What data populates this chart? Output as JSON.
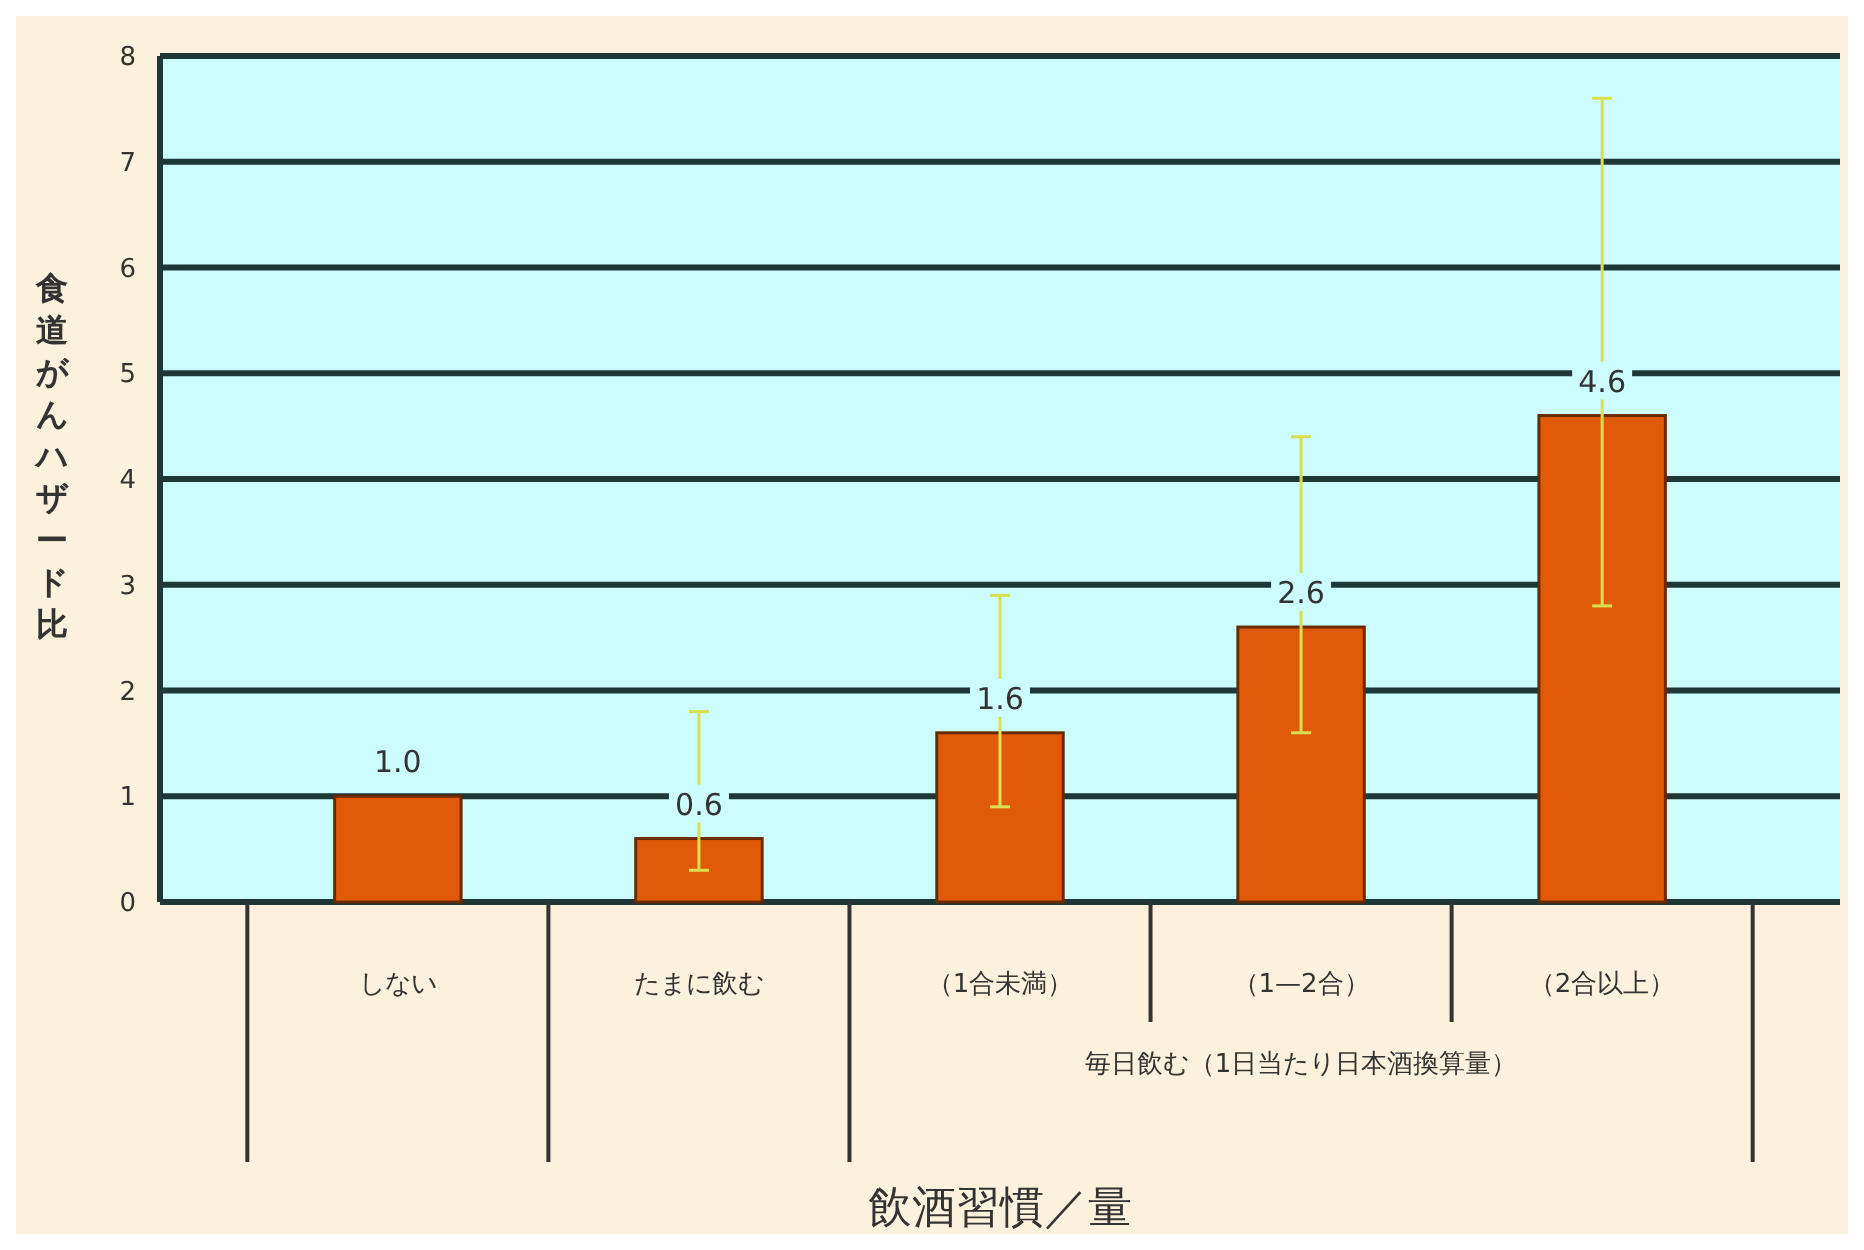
{
  "chart_data": {
    "type": "bar",
    "xlabel": "飲酒習慣／量",
    "ylabel": "食道がんハザード比",
    "categories": [
      "しない",
      "たまに飲む",
      "（1合未満）",
      "（1—2合）",
      "（2合以上）"
    ],
    "values": [
      1.0,
      0.6,
      1.6,
      2.6,
      4.6
    ],
    "errors": [
      null,
      [
        0.3,
        1.8
      ],
      [
        0.9,
        2.9
      ],
      [
        1.6,
        4.4
      ],
      [
        2.8,
        7.6
      ]
    ],
    "value_labels": [
      "1.0",
      "0.6",
      "1.6",
      "2.6",
      "4.6"
    ],
    "color": "#e05a0a",
    "ylim": [
      0,
      8
    ],
    "yticks": [
      0,
      1,
      2,
      3,
      4,
      5,
      6,
      7,
      8
    ],
    "grid": "y",
    "annotations": [
      "毎日飲む（1日当たり日本酒換算量）"
    ]
  }
}
